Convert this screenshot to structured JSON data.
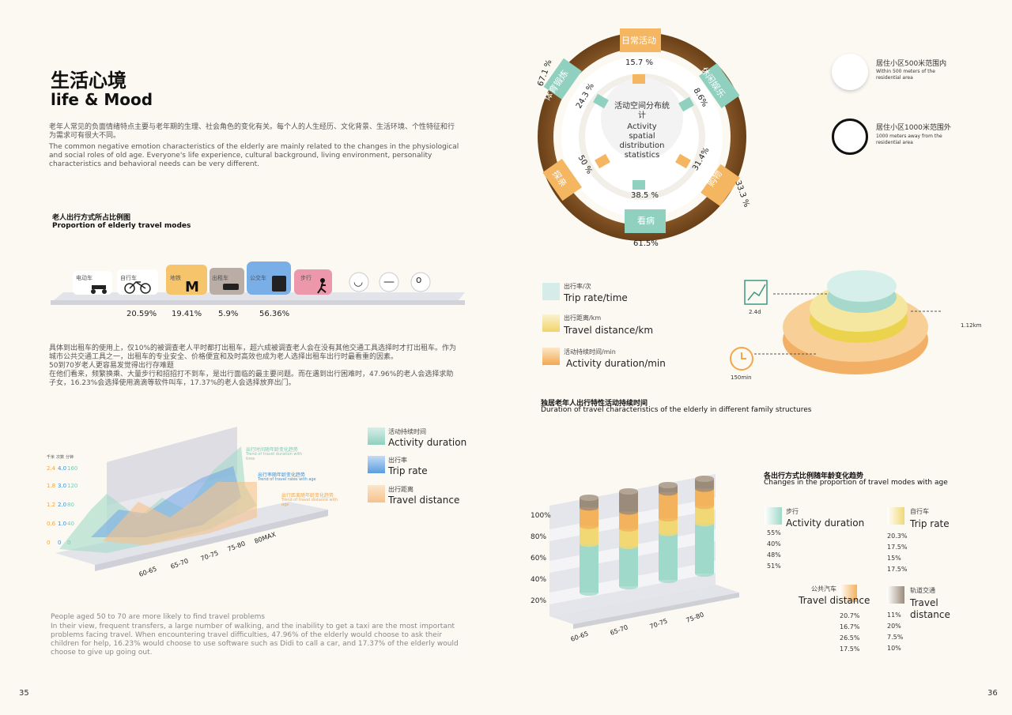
{
  "pages": {
    "left": "35",
    "right": "36"
  },
  "header": {
    "title_cn": "生活心境",
    "title_en": "life & Mood"
  },
  "intro": {
    "cn": "老年人常见的负面情绪特点主要与老年期的生理、社会角色的变化有关。每个人的人生经历、文化背景、生活环境、个性特征和行为需求可有很大不同。",
    "en": "The common negative emotion characteristics of the elderly are mainly related to the changes in the physiological and social roles of old age. Everyone's life experience, cultural background, living environment, personality characteristics and behavioral needs can be very different."
  },
  "travel_modes": {
    "title_cn": "老人出行方式所占比例图",
    "title_en": "Proportion of elderly travel modes",
    "modes": [
      {
        "label": "电动车",
        "icon": "scooter-icon",
        "color": "#ffffff"
      },
      {
        "label": "自行车",
        "icon": "bicycle-icon",
        "color": "#ffffff"
      },
      {
        "label": "地铁",
        "icon": "metro-icon",
        "color": "#f6c46a"
      },
      {
        "label": "出租车",
        "icon": "taxi-icon",
        "color": "#b9ada6"
      },
      {
        "label": "公交车",
        "icon": "bus-icon",
        "color": "#79aee6"
      },
      {
        "label": "步行",
        "icon": "walking-icon",
        "color": "#ec97aa"
      }
    ],
    "faces": [
      "smile-face-icon",
      "neutral-face-icon",
      "surprised-face-icon"
    ],
    "percentages": [
      "20.59%",
      "19.41%",
      "5.9%",
      "56.36%"
    ]
  },
  "taxi_text": {
    "cn": "具体到出租车的使用上，仅10%的被调查老人平时都打出租车，超六成被调查老人会在没有其他交通工具选择时才打出租车。作为城市公共交通工具之一，出租车的专业安全、价格便宜和及时高效也成为老人选择出租车出行时最看重的因素。",
    "cn2": "50到70岁老人更容易发觉得出行存难题",
    "cn3": "在他们看来，频繁换乘、大量步行和招招打不到车，是出行面临的最主要问题。而在遇到出行困难时，47.96%的老人会选择求助子女，16.23%会选择使用滴滴等软件叫车，17.37%的老人会选择放弃出门。"
  },
  "area_chart": {
    "unit_labels": [
      "千米",
      "次数",
      "分钟"
    ],
    "annotations": [
      {
        "cn": "出行时间随年龄变化趋势",
        "en": "Trend of travel duration with time",
        "color": "#7fc8b6"
      },
      {
        "cn": "出行率随年龄变化趋势",
        "en": "Trend of travel rates with age",
        "color": "#3b8fd6"
      },
      {
        "cn": "出行距离随年龄变化趋势",
        "en": "Trend of travel distance with age",
        "color": "#f2a74a"
      }
    ],
    "legend": [
      {
        "cn": "活动持续时间",
        "en": "Activity duration",
        "color": "#8fd0bf"
      },
      {
        "cn": "出行率",
        "en": "Trip rate",
        "color": "#5a9de0"
      },
      {
        "cn": "出行距离",
        "en": "Travel distance",
        "color": "#f6c28a"
      }
    ]
  },
  "bottom_text": {
    "en1": "People aged 50 to 70 are more likely to find travel problems",
    "en2": "In their view, frequent transfers, a large number of walking, and the inability to get a taxi are the most important problems facing travel. When encountering travel difficulties, 47.96% of the elderly would choose to ask their children for help, 16.23% would choose to use software such as Didi to call a car, and 17.37% of the elderly would choose to give up going out."
  },
  "activity_ring": {
    "center_cn": "活动空间分布统计",
    "center_en": "Activity spatial distribution statistics",
    "segments": [
      {
        "label": "日常活动",
        "color": "#f5b661"
      },
      {
        "label": "休闲娱乐",
        "color": "#8fd0bf"
      },
      {
        "label": "购物",
        "color": "#f5b661"
      },
      {
        "label": "看病",
        "color": "#8fd0bf"
      },
      {
        "label": "探亲",
        "color": "#f5b661"
      },
      {
        "label": "体育锻炼",
        "color": "#8fd0bf"
      }
    ],
    "inner_values": [
      "15.7 %",
      "8.6%",
      "31.4%",
      "38.5 %",
      "50 %",
      "24.3 %"
    ],
    "outer_values": [
      "67.1 %",
      "33.3 %",
      "61.5%"
    ],
    "legend": [
      {
        "cn": "居住小区500米范围内",
        "en": "Within 500 meters of the residential area"
      },
      {
        "cn": "居住小区1000米范围外",
        "en": "1000 meters away from the residential area"
      }
    ]
  },
  "stack_chart": {
    "title_cn": "独居老年人出行特性活动持续时间",
    "title_en": "Duration of travel characteristics of the elderly in different family structures",
    "legend": [
      {
        "cn": "出行率/次",
        "en": "Trip rate/time",
        "color": "#bde3dc"
      },
      {
        "cn": "出行距离/km",
        "en": "Travel distance/km",
        "color": "#f1d468"
      },
      {
        "cn": "活动持续时间/min",
        "en": "Activity duration/min",
        "color": "#f3a84e"
      }
    ],
    "values": {
      "trip": "2.4d",
      "distance": "1.12km",
      "duration": "150min"
    }
  },
  "chart_data": {
    "type": "bar",
    "title": "各出行方式比例随年龄变化趋势",
    "subtitle": "Changes in the proportion of travel modes with age",
    "categories": [
      "60-65",
      "65-70",
      "70-75",
      "75-80"
    ],
    "y_ticks": [
      "20%",
      "40%",
      "60%",
      "80%",
      "100%"
    ],
    "ylim": [
      0,
      100
    ],
    "series": [
      {
        "name_cn": "步行",
        "name": "Activity duration",
        "values": [
          55,
          40,
          48,
          51
        ],
        "labels": [
          "55%",
          "40%",
          "48%",
          "51%"
        ],
        "color": "#9fd9c9"
      },
      {
        "name_cn": "自行车",
        "name": "Trip rate",
        "values": [
          20.3,
          17.5,
          15,
          17.5
        ],
        "labels": [
          "20.3%",
          "17.5%",
          "15%",
          "17.5%"
        ],
        "color": "#f1d874"
      },
      {
        "name_cn": "公共汽车",
        "name": "Travel distance",
        "values": [
          20.7,
          16.7,
          26.5,
          17.5
        ],
        "labels": [
          "20.7%",
          "16.7%",
          "26.5%",
          "17.5%"
        ],
        "color": "#f3b25c"
      },
      {
        "name_cn": "轨道交通",
        "name": "Travel distance",
        "values": [
          11,
          20,
          7.5,
          10
        ],
        "labels": [
          "11%",
          "20%",
          "7.5%",
          "10%"
        ],
        "color": "#9b8b7b"
      }
    ]
  }
}
